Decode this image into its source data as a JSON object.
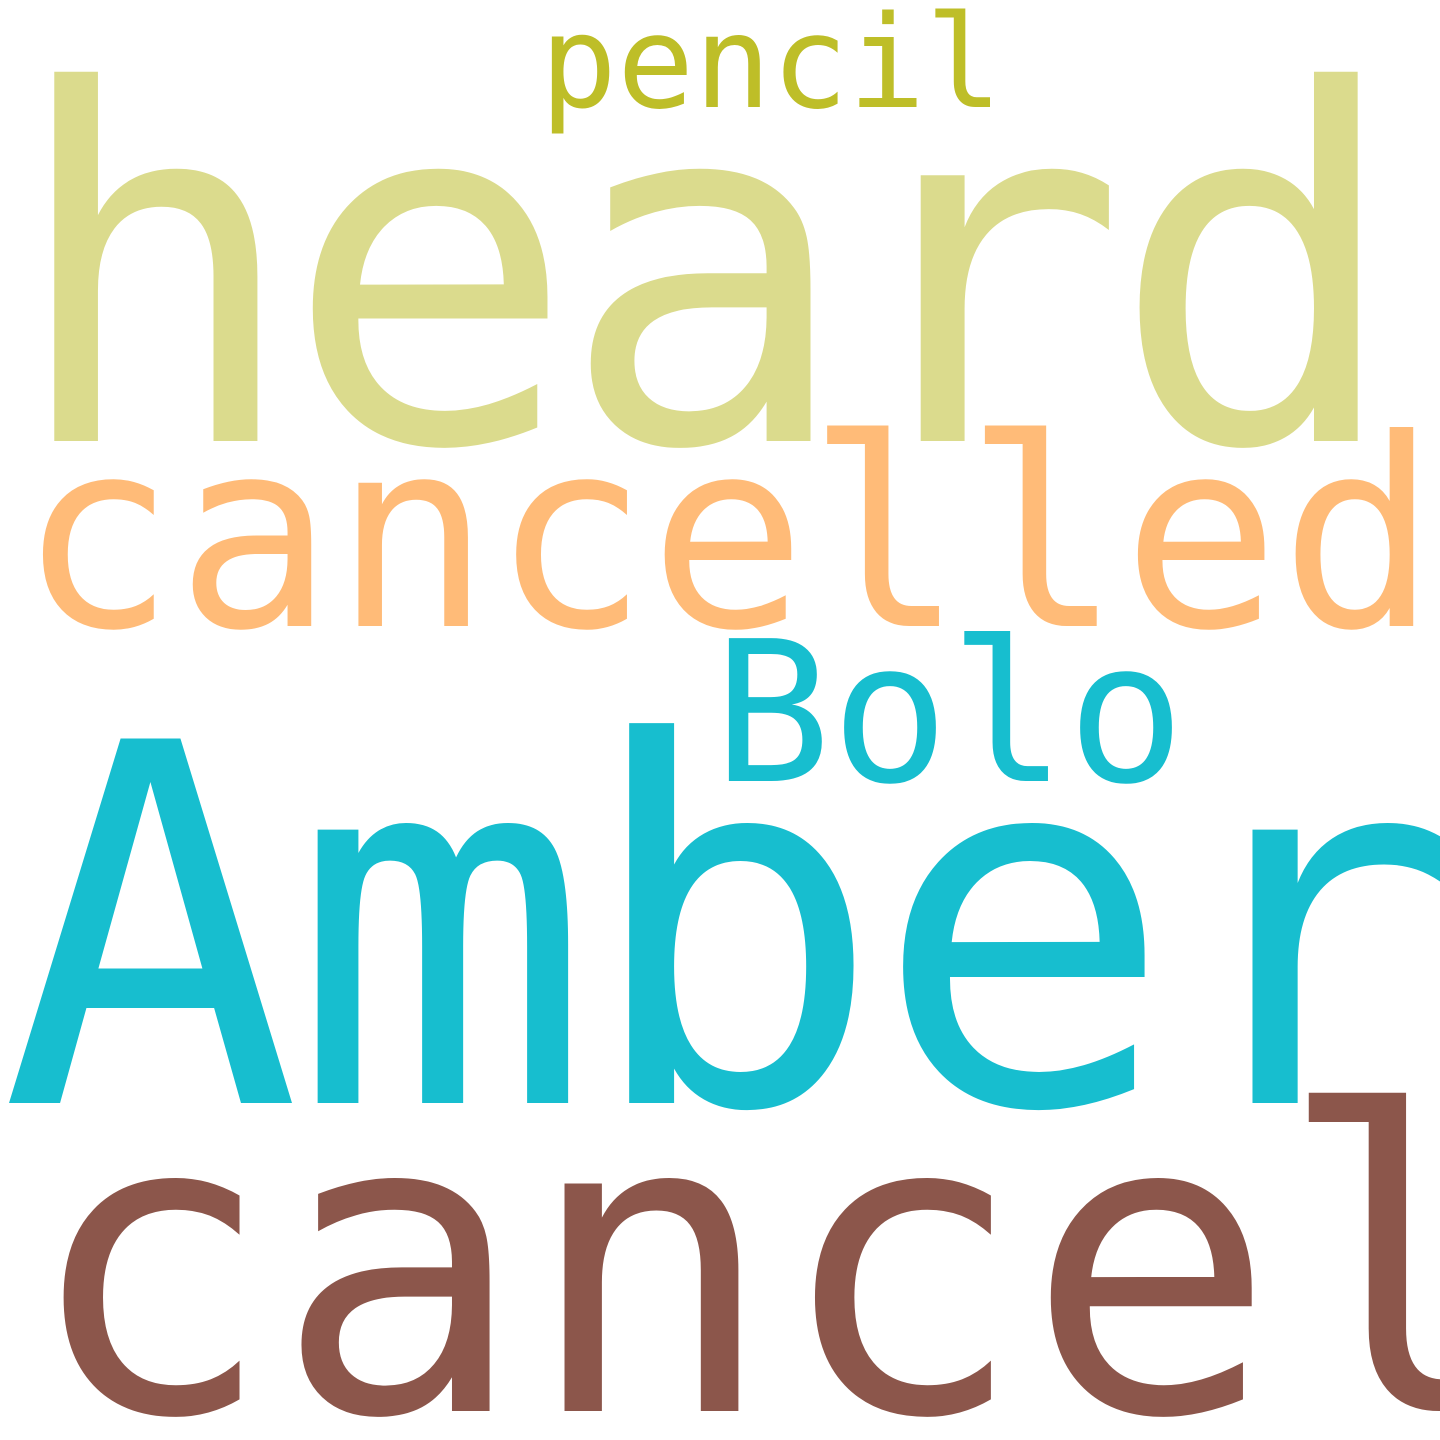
{
  "words": [
    {
      "text": "pencil",
      "color": "#bebe28"
    },
    {
      "text": "heard",
      "color": "#dbdb8d"
    },
    {
      "text": "cancelled",
      "color": "#ffbb78"
    },
    {
      "text": "Bolo",
      "color": "#17becf"
    },
    {
      "text": "Amber",
      "color": "#17becf"
    },
    {
      "text": "cancel",
      "color": "#8c564b"
    }
  ],
  "background": "#ffffff"
}
